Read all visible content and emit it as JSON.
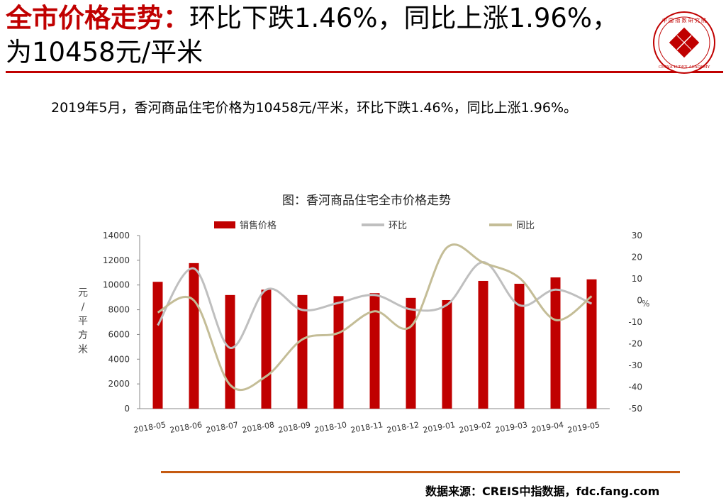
{
  "header": {
    "title_red": "全市价格走势：",
    "title_rest": "环比下跌1.46%，同比上涨1.96%，为10458元/平米"
  },
  "description": "2019年5月，香河商品住宅价格为10458元/平米，环比下跌1.46%，同比上涨1.96%。",
  "source": "数据来源：CREIS中指数据，fdc.fang.com",
  "colors": {
    "accent": "#c00000",
    "bar": "#c00000",
    "mom_line": "#bfbfbf",
    "yoy_line": "#c4bd97",
    "footer_rule": "#c55a11"
  },
  "chart_data": {
    "type": "bar",
    "title": "图：香河商品住宅全市价格走势",
    "categories": [
      "2018-05",
      "2018-06",
      "2018-07",
      "2018-08",
      "2018-09",
      "2018-10",
      "2018-11",
      "2018-12",
      "2019-01",
      "2019-02",
      "2019-03",
      "2019-04",
      "2019-05"
    ],
    "series": [
      {
        "name": "销售价格",
        "type": "bar",
        "axis": "left",
        "values": [
          10257,
          11770,
          9190,
          9620,
          9190,
          9100,
          9340,
          8960,
          8780,
          10330,
          10100,
          10614,
          10458
        ]
      },
      {
        "name": "环比",
        "type": "line",
        "axis": "right",
        "values": [
          -11.5,
          14.8,
          -21.9,
          5.0,
          -4.4,
          -1.1,
          2.5,
          -4.1,
          -2.0,
          17.7,
          -2.2,
          5.0,
          -1.46
        ]
      },
      {
        "name": "同比",
        "type": "line",
        "axis": "right",
        "values": [
          -5.5,
          0,
          -39.0,
          -35.0,
          -18.0,
          -15.0,
          -5.0,
          -12.0,
          24.5,
          17.5,
          10.5,
          -9.0,
          1.96
        ]
      }
    ],
    "ylabel": "元/平方米",
    "y2label": "%",
    "ylim": [
      0,
      14000
    ],
    "y2lim": [
      -50,
      30
    ],
    "yticks": [
      "0",
      "2000",
      "4000",
      "6000",
      "8000",
      "10000",
      "12000",
      "14000"
    ],
    "y2ticks": [
      "-50",
      "-40",
      "-30",
      "-20",
      "-10",
      "0",
      "10",
      "20",
      "30"
    ],
    "legend": "top",
    "grid": false
  }
}
